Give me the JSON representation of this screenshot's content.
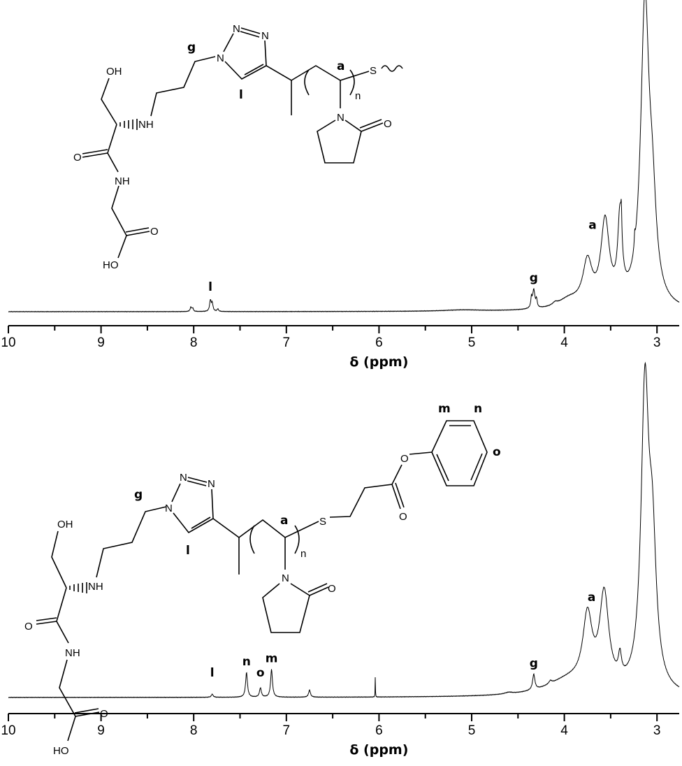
{
  "chart_data": [
    {
      "type": "line",
      "title": "",
      "xlabel": "δ (ppm)",
      "ylabel": "",
      "xlim": [
        10,
        2.78
      ],
      "x_reversed": true,
      "xticks": [
        "10",
        "9",
        "8",
        "7",
        "6",
        "5",
        "4",
        "3"
      ],
      "grid": false,
      "peaks_ppm_height_width": [
        [
          3.13,
          96,
          0.055
        ],
        [
          3.05,
          25,
          0.05
        ],
        [
          3.4,
          26,
          0.028
        ],
        [
          3.385,
          8,
          0.006
        ],
        [
          3.24,
          4,
          0.006
        ],
        [
          3.56,
          27,
          0.055
        ],
        [
          3.75,
          14,
          0.06
        ],
        [
          3.95,
          3,
          0.15
        ],
        [
          4.33,
          6,
          0.015
        ],
        [
          4.355,
          3,
          0.008
        ],
        [
          4.3,
          2.5,
          0.008
        ],
        [
          4.1,
          0.8,
          0.03
        ],
        [
          7.82,
          3.5,
          0.01
        ],
        [
          7.8,
          2.5,
          0.01
        ],
        [
          7.74,
          0.8,
          0.01
        ],
        [
          8.03,
          1.4,
          0.01
        ],
        [
          8.01,
          1.0,
          0.008
        ],
        [
          5.1,
          0.4,
          0.25
        ]
      ],
      "annotations": [
        {
          "label": "l",
          "ppm": 7.82
        },
        {
          "label": "g",
          "ppm": 4.33
        },
        {
          "label": "a",
          "ppm": 3.56
        }
      ],
      "structure": {
        "atoms": [
          "OH",
          "NH",
          "O",
          "NH",
          "O",
          "HO",
          "N",
          "N",
          "N",
          "N",
          "O",
          "S"
        ],
        "labels": [
          "g",
          "l",
          "a",
          "n"
        ]
      }
    },
    {
      "type": "line",
      "title": "",
      "xlabel": "δ (ppm)",
      "ylabel": "",
      "xlim": [
        10,
        2.78
      ],
      "x_reversed": true,
      "xticks": [
        "10",
        "9",
        "8",
        "7",
        "6",
        "5",
        "4",
        "3"
      ],
      "grid": false,
      "peaks_ppm_height_width": [
        [
          3.13,
          95,
          0.05
        ],
        [
          3.05,
          42,
          0.05
        ],
        [
          3.57,
          30,
          0.06
        ],
        [
          3.75,
          22,
          0.06
        ],
        [
          3.4,
          7,
          0.02
        ],
        [
          3.95,
          5,
          0.3
        ],
        [
          4.33,
          5,
          0.015
        ],
        [
          4.15,
          1,
          0.02
        ],
        [
          7.43,
          8,
          0.012
        ],
        [
          7.28,
          3,
          0.012
        ],
        [
          7.16,
          9,
          0.012
        ],
        [
          6.75,
          2.3,
          0.012
        ],
        [
          7.8,
          1,
          0.012
        ],
        [
          6.04,
          8,
          0.0015
        ],
        [
          4.6,
          0.5,
          0.05
        ]
      ],
      "annotations": [
        {
          "label": "l",
          "ppm": 7.8
        },
        {
          "label": "n",
          "ppm": 7.43
        },
        {
          "label": "o",
          "ppm": 7.28
        },
        {
          "label": "m",
          "ppm": 7.16
        },
        {
          "label": "g",
          "ppm": 4.33
        },
        {
          "label": "a",
          "ppm": 3.57
        }
      ],
      "structure": {
        "atoms": [
          "OH",
          "NH",
          "O",
          "NH",
          "O",
          "HO",
          "N",
          "N",
          "N",
          "N",
          "O",
          "S",
          "O",
          "O"
        ],
        "labels": [
          "g",
          "l",
          "a",
          "n",
          "m",
          "n",
          "o"
        ]
      }
    }
  ]
}
